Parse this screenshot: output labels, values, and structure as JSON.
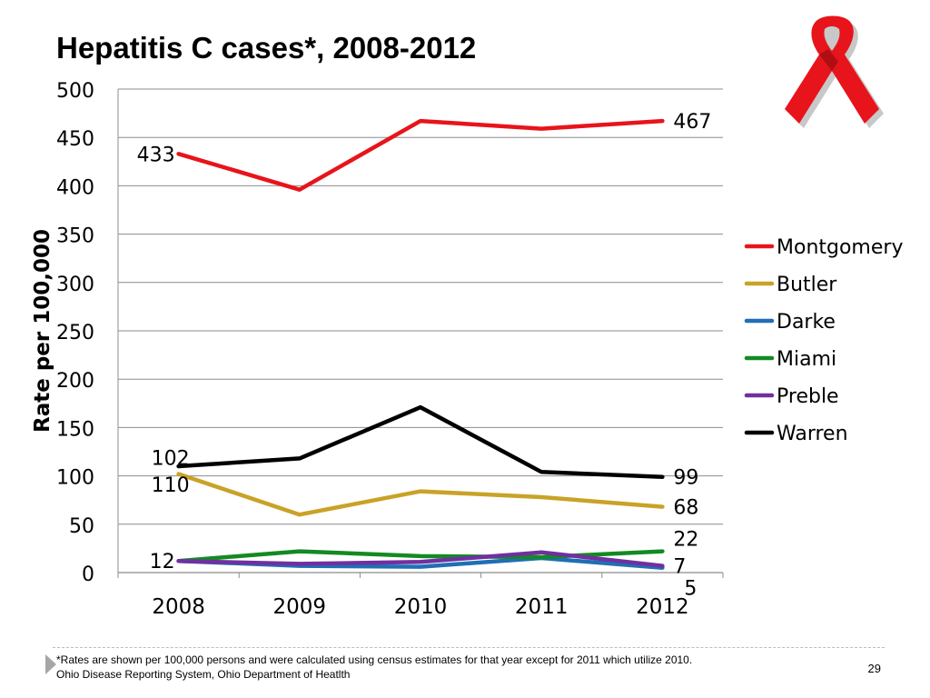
{
  "slide": {
    "title": "Hepatitis C cases*, 2008-2012",
    "footnote_line1": "*Rates are shown per 100,000 persons and were calculated using census estimates for that year except for 2011 which utilize 2010.",
    "footnote_line2": "Ohio Disease Reporting System, Ohio Department of Heatlth",
    "page_number": "29",
    "ribbon_icon": "awareness-ribbon-icon",
    "ribbon_color": "#e8141b"
  },
  "chart_data": {
    "type": "line",
    "title": "",
    "xlabel": "",
    "ylabel": "Rate per 100,000",
    "x": [
      "2008",
      "2009",
      "2010",
      "2011",
      "2012"
    ],
    "ylim": [
      0,
      500
    ],
    "yticks": [
      "0",
      "50",
      "100",
      "150",
      "200",
      "250",
      "300",
      "350",
      "400",
      "450",
      "500"
    ],
    "grid": "horizontal",
    "legend_position": "right",
    "series": [
      {
        "name": "Montgomery",
        "color": "#e8141b",
        "values": [
          433,
          396,
          467,
          459,
          467
        ]
      },
      {
        "name": "Butler",
        "color": "#c9a227",
        "values": [
          102,
          60,
          84,
          78,
          68
        ]
      },
      {
        "name": "Darke",
        "color": "#1f6fb5",
        "values": [
          12,
          7,
          6,
          15,
          5
        ]
      },
      {
        "name": "Miami",
        "color": "#148a22",
        "values": [
          12,
          22,
          17,
          16,
          22
        ]
      },
      {
        "name": "Preble",
        "color": "#7030a0",
        "values": [
          12,
          9,
          11,
          21,
          7
        ]
      },
      {
        "name": "Warren",
        "color": "#000000",
        "values": [
          110,
          118,
          171,
          104,
          99
        ]
      }
    ],
    "data_labels": [
      {
        "text": "433",
        "series": "Montgomery",
        "index": 0,
        "anchor": "left"
      },
      {
        "text": "467",
        "series": "Montgomery",
        "index": 4,
        "anchor": "right"
      },
      {
        "text": "102",
        "series": "Butler",
        "index": 0,
        "anchor": "above-left"
      },
      {
        "text": "110",
        "series": "Warren",
        "index": 0,
        "anchor": "below-left"
      },
      {
        "text": "99",
        "series": "Warren",
        "index": 4,
        "anchor": "right"
      },
      {
        "text": "68",
        "series": "Butler",
        "index": 4,
        "anchor": "right"
      },
      {
        "text": "22",
        "series": "Miami",
        "index": 4,
        "anchor": "above-right"
      },
      {
        "text": "12",
        "series": "Darke",
        "index": 0,
        "anchor": "left"
      },
      {
        "text": "7",
        "series": "Preble",
        "index": 4,
        "anchor": "right"
      },
      {
        "text": "5",
        "series": "Darke",
        "index": 4,
        "anchor": "below-right"
      }
    ]
  }
}
